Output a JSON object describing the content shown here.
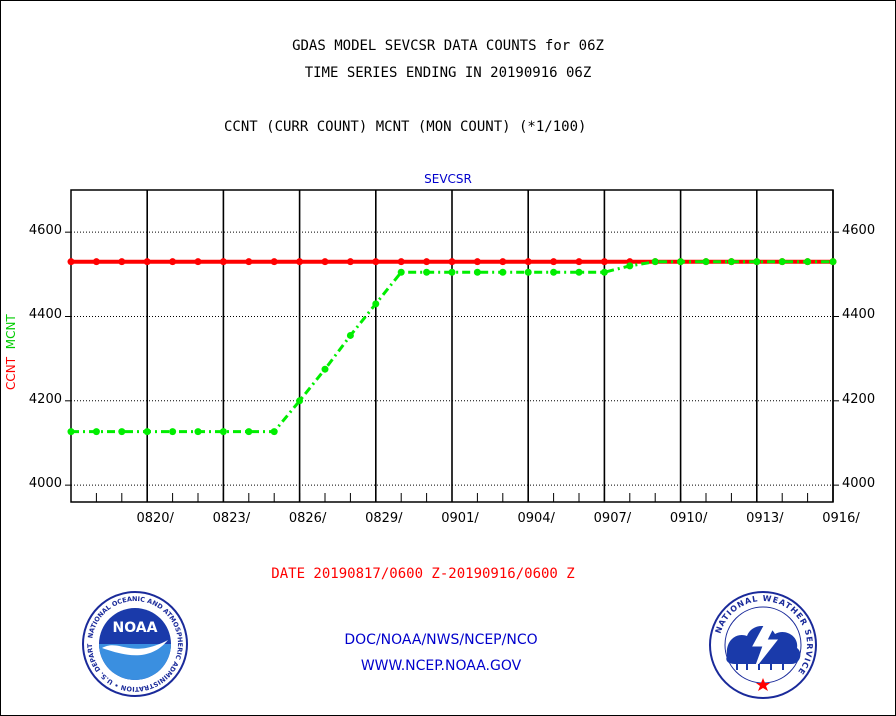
{
  "header": {
    "title_line1": "GDAS MODEL SEVCSR DATA COUNTS for 06Z",
    "title_line2": "TIME SERIES ENDING IN 20190916 06Z",
    "title_line3": "CCNT (CURR COUNT) MCNT (MON COUNT) (*1/100)"
  },
  "chart_data": {
    "type": "line",
    "subtitle": "SEVCSR",
    "ylabel_parts": [
      "CCNT",
      "MCNT"
    ],
    "ylim": [
      3960,
      4700
    ],
    "yticks": [
      "4000",
      "4200",
      "4400",
      "4600"
    ],
    "xlim": [
      "2019-08-17",
      "2019-09-16"
    ],
    "xticks": [
      "0820/",
      "0823/",
      "0826/",
      "0829/",
      "0901/",
      "0904/",
      "0907/",
      "0910/",
      "0913/",
      "0916/"
    ],
    "grid": true,
    "series": [
      {
        "name": "CCNT",
        "color": "#ff0000",
        "style": "solid",
        "x": [
          "2019-08-17",
          "2019-08-18",
          "2019-08-19",
          "2019-08-20",
          "2019-08-21",
          "2019-08-22",
          "2019-08-23",
          "2019-08-24",
          "2019-08-25",
          "2019-08-26",
          "2019-08-27",
          "2019-08-28",
          "2019-08-29",
          "2019-08-30",
          "2019-08-31",
          "2019-09-01",
          "2019-09-02",
          "2019-09-03",
          "2019-09-04",
          "2019-09-05",
          "2019-09-06",
          "2019-09-07",
          "2019-09-08",
          "2019-09-09",
          "2019-09-10",
          "2019-09-11",
          "2019-09-12",
          "2019-09-13",
          "2019-09-14",
          "2019-09-15",
          "2019-09-16"
        ],
        "values": [
          4530,
          4530,
          4530,
          4530,
          4530,
          4530,
          4530,
          4530,
          4530,
          4530,
          4530,
          4530,
          4530,
          4530,
          4530,
          4530,
          4530,
          4530,
          4530,
          4530,
          4530,
          4530,
          4530,
          4530,
          4530,
          4530,
          4530,
          4530,
          4530,
          4530,
          4530
        ]
      },
      {
        "name": "MCNT",
        "color": "#00ee00",
        "style": "dashdot",
        "x": [
          "2019-08-17",
          "2019-08-18",
          "2019-08-19",
          "2019-08-20",
          "2019-08-21",
          "2019-08-22",
          "2019-08-23",
          "2019-08-24",
          "2019-08-25",
          "2019-08-26",
          "2019-08-27",
          "2019-08-28",
          "2019-08-29",
          "2019-08-30",
          "2019-08-31",
          "2019-09-01",
          "2019-09-02",
          "2019-09-03",
          "2019-09-04",
          "2019-09-05",
          "2019-09-06",
          "2019-09-07",
          "2019-09-08",
          "2019-09-09",
          "2019-09-10",
          "2019-09-11",
          "2019-09-12",
          "2019-09-13",
          "2019-09-14",
          "2019-09-15",
          "2019-09-16"
        ],
        "values": [
          4127,
          4127,
          4127,
          4127,
          4127,
          4127,
          4127,
          4127,
          4127,
          4200,
          4275,
          4355,
          4430,
          4505,
          4505,
          4505,
          4505,
          4505,
          4505,
          4505,
          4505,
          4505,
          4520,
          4530,
          4530,
          4530,
          4530,
          4530,
          4530,
          4530,
          4530
        ]
      }
    ],
    "date_range_label": "DATE 20190817/0600 Z-20190916/0600 Z"
  },
  "footer": {
    "org_path": "DOC/NOAA/NWS/NCEP/NCO",
    "url": "WWW.NCEP.NOAA.GOV"
  },
  "logos": {
    "noaa": {
      "text": "NOAA",
      "ring_text": "NATIONAL OCEANIC AND ATMOSPHERIC ADMINISTRATION • U.S. DEPARTMENT OF COMMERCE"
    },
    "nws": {
      "ring_text": "NATIONAL WEATHER SERVICE"
    }
  }
}
